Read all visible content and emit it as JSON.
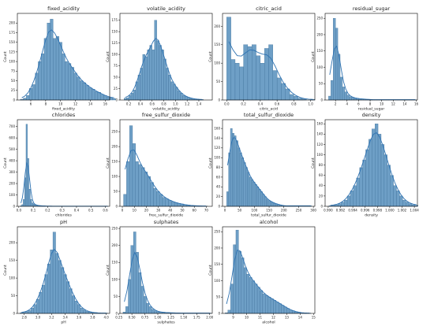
{
  "chart_data": [
    {
      "type": "bar",
      "title": "fixed_acidity",
      "xlabel": "fixed_acidity",
      "ylabel": "Count",
      "xlim": [
        4.2,
        16.6
      ],
      "ylim": [
        0,
        225
      ],
      "bin_start": 4.6,
      "bin_width": 0.4,
      "values": [
        2,
        5,
        12,
        30,
        40,
        70,
        100,
        120,
        160,
        200,
        210,
        160,
        165,
        150,
        120,
        100,
        95,
        85,
        70,
        60,
        50,
        45,
        38,
        32,
        28,
        22,
        20,
        15,
        12,
        8,
        6,
        4
      ],
      "xticks": [
        6,
        8,
        10,
        12,
        14,
        16
      ],
      "yticks": [
        0,
        25,
        50,
        75,
        100,
        125,
        150,
        175,
        200
      ]
    },
    {
      "type": "bar",
      "title": "volatile_acidity",
      "xlabel": "volatile_acidity",
      "ylabel": "Count",
      "xlim": [
        0.05,
        1.63
      ],
      "ylim": [
        0,
        190
      ],
      "bin_start": 0.12,
      "bin_width": 0.04,
      "values": [
        4,
        5,
        10,
        15,
        22,
        40,
        55,
        70,
        100,
        95,
        110,
        120,
        110,
        175,
        130,
        120,
        110,
        90,
        70,
        55,
        40,
        35,
        28,
        20,
        15,
        10,
        8,
        6,
        4,
        3,
        2,
        2,
        1,
        1
      ],
      "xticks": [
        0.2,
        0.4,
        0.6,
        0.8,
        1.0,
        1.2,
        1.4
      ],
      "yticks": [
        0,
        25,
        50,
        75,
        100,
        125,
        150,
        175
      ]
    },
    {
      "type": "bar",
      "title": "citric_acid",
      "xlabel": "citric_acid",
      "ylabel": "Count",
      "xlim": [
        -0.05,
        1.05
      ],
      "ylim": [
        0,
        235
      ],
      "bin_start": 0.0,
      "bin_width": 0.05,
      "values": [
        225,
        110,
        100,
        90,
        150,
        145,
        150,
        120,
        100,
        140,
        150,
        80,
        60,
        45,
        30,
        15,
        10,
        5,
        3,
        0,
        2
      ],
      "xticks": [
        0.0,
        0.2,
        0.4,
        0.6,
        0.8,
        1.0
      ],
      "yticks": [
        0,
        50,
        100,
        150,
        200
      ]
    },
    {
      "type": "bar",
      "title": "residual_sugar",
      "xlabel": "residual_sugar",
      "ylabel": "Count",
      "xlim": [
        0.2,
        16.2
      ],
      "ylim": [
        0,
        265
      ],
      "bin_start": 0.8,
      "bin_width": 0.4,
      "values": [
        12,
        60,
        250,
        220,
        140,
        70,
        40,
        25,
        15,
        10,
        8,
        6,
        5,
        4,
        3,
        3,
        2,
        2,
        1,
        1,
        1,
        1,
        1,
        1,
        1,
        1,
        1,
        1,
        1,
        1,
        1,
        1,
        1,
        1,
        1,
        1,
        1,
        1
      ],
      "xticks": [
        2,
        4,
        6,
        8,
        10,
        12,
        14,
        16
      ],
      "yticks": [
        0,
        50,
        100,
        150,
        200,
        250
      ]
    },
    {
      "type": "bar",
      "title": "chlorides",
      "xlabel": "chlorides",
      "ylabel": "Count",
      "xlim": [
        -0.01,
        0.63
      ],
      "ylim": [
        0,
        760
      ],
      "bin_start": 0.01,
      "bin_width": 0.01,
      "values": [
        5,
        15,
        60,
        250,
        720,
        420,
        150,
        60,
        30,
        20,
        12,
        10,
        8,
        6,
        5,
        4,
        3,
        3,
        2,
        2,
        2,
        2,
        1,
        1,
        1,
        1,
        1,
        1,
        1,
        1,
        1,
        1,
        1,
        1,
        1,
        1,
        1,
        1,
        1,
        1,
        1,
        1,
        1,
        1,
        1,
        1,
        1,
        1,
        1,
        1,
        1,
        1,
        1,
        1,
        1,
        1,
        1,
        1,
        1,
        1,
        1
      ],
      "xticks": [
        0.0,
        0.1,
        0.2,
        0.3,
        0.4,
        0.5,
        0.6
      ],
      "yticks": [
        0,
        100,
        200,
        300,
        400,
        500,
        600,
        700
      ]
    },
    {
      "type": "bar",
      "title": "free_sulfur_dioxide",
      "xlabel": "free_sulfur_dioxide",
      "ylabel": "Count",
      "xlim": [
        -2,
        75
      ],
      "ylim": [
        0,
        290
      ],
      "bin_start": 1,
      "bin_width": 2.5,
      "values": [
        40,
        150,
        270,
        210,
        150,
        140,
        130,
        115,
        100,
        80,
        60,
        50,
        40,
        30,
        25,
        20,
        15,
        12,
        10,
        8,
        5,
        4,
        3,
        2,
        2,
        1,
        1,
        1
      ],
      "xticks": [
        0,
        10,
        20,
        30,
        40,
        50,
        60,
        70
      ],
      "yticks": [
        0,
        50,
        100,
        150,
        200,
        250
      ]
    },
    {
      "type": "bar",
      "title": "total_sulfur_dioxide",
      "xlabel": "total_sulfur_dioxide",
      "ylabel": "Count",
      "xlim": [
        -8,
        305
      ],
      "ylim": [
        0,
        178
      ],
      "bin_start": 6,
      "bin_width": 6.4,
      "values": [
        30,
        110,
        160,
        150,
        145,
        135,
        120,
        110,
        100,
        90,
        80,
        70,
        60,
        55,
        50,
        45,
        40,
        35,
        30,
        25,
        20,
        15,
        12,
        10,
        8,
        6,
        5,
        4,
        3,
        2,
        1,
        1,
        1,
        1,
        1,
        1,
        1,
        1,
        1,
        1,
        1,
        1,
        1,
        1,
        1
      ],
      "xticks": [
        0,
        50,
        100,
        150,
        200,
        250,
        300
      ],
      "yticks": [
        0,
        20,
        40,
        60,
        80,
        100,
        120,
        140,
        160
      ]
    },
    {
      "type": "bar",
      "title": "density",
      "xlabel": "density",
      "ylabel": "Count",
      "xlim": [
        0.9895,
        1.0045
      ],
      "ylim": [
        0,
        168
      ],
      "bin_start": 0.9901,
      "bin_width": 0.0005,
      "values": [
        1,
        2,
        3,
        5,
        8,
        12,
        20,
        30,
        40,
        55,
        75,
        90,
        110,
        130,
        150,
        160,
        140,
        120,
        100,
        80,
        60,
        40,
        30,
        20,
        12,
        8,
        5,
        3,
        2
      ],
      "xticks": [
        0.99,
        0.992,
        0.994,
        0.996,
        0.998,
        1.0,
        1.002,
        1.004
      ],
      "yticks": [
        0,
        20,
        40,
        60,
        80,
        100,
        120,
        140,
        160
      ]
    },
    {
      "type": "bar",
      "title": "pH",
      "xlabel": "pH",
      "ylabel": "Count",
      "xlim": [
        2.7,
        4.05
      ],
      "ylim": [
        0,
        245
      ],
      "bin_start": 2.74,
      "bin_width": 0.04,
      "values": [
        2,
        3,
        5,
        8,
        15,
        25,
        40,
        60,
        80,
        110,
        140,
        180,
        230,
        170,
        150,
        130,
        110,
        90,
        70,
        50,
        35,
        25,
        15,
        10,
        6,
        4,
        3,
        2,
        1,
        1,
        1,
        1
      ],
      "xticks": [
        2.8,
        3.0,
        3.2,
        3.4,
        3.6,
        3.8,
        4.0
      ],
      "yticks": [
        0,
        50,
        100,
        150,
        200
      ]
    },
    {
      "type": "bar",
      "title": "sulphates",
      "xlabel": "sulphates",
      "ylabel": "Count",
      "xlim": [
        0.27,
        2.05
      ],
      "ylim": [
        0,
        255
      ],
      "bin_start": 0.33,
      "bin_width": 0.05,
      "values": [
        4,
        20,
        100,
        200,
        240,
        180,
        120,
        80,
        50,
        30,
        20,
        12,
        8,
        5,
        4,
        3,
        3,
        2,
        2,
        2,
        1,
        1,
        1,
        1,
        1,
        1,
        1,
        1,
        1,
        1,
        1,
        1,
        1,
        1
      ],
      "xticks": [
        0.25,
        0.5,
        0.75,
        1.0,
        1.25,
        1.5,
        1.75,
        2.0
      ],
      "yticks": [
        0,
        50,
        100,
        150,
        200,
        250
      ]
    },
    {
      "type": "bar",
      "title": "alcohol",
      "xlabel": "alcohol",
      "ylabel": "Count",
      "xlim": [
        8.2,
        15.1
      ],
      "ylim": [
        0,
        265
      ],
      "bin_start": 8.4,
      "bin_width": 0.2,
      "values": [
        2,
        10,
        90,
        210,
        255,
        190,
        170,
        140,
        120,
        110,
        100,
        90,
        80,
        70,
        60,
        55,
        50,
        45,
        40,
        35,
        30,
        25,
        20,
        15,
        10,
        8,
        5,
        3,
        2,
        1,
        1,
        1
      ],
      "xticks": [
        9,
        10,
        11,
        12,
        13,
        14,
        15
      ],
      "yticks": [
        0,
        50,
        100,
        150,
        200,
        250
      ]
    }
  ]
}
